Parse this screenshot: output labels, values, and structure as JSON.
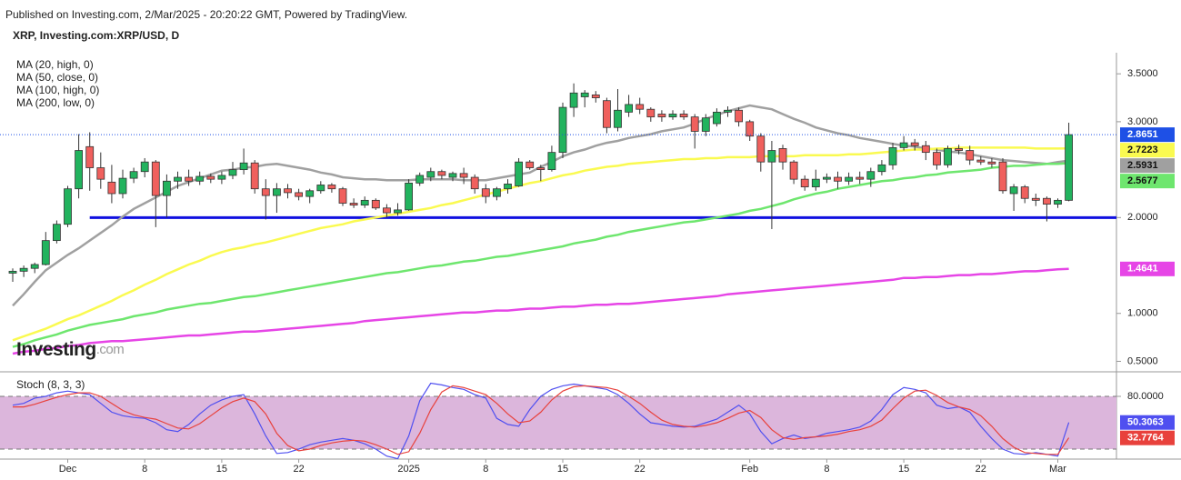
{
  "header": {
    "published": "Published on Investing.com, 2/Mar/2025 - 20:20:22 GMT, Powered by TradingView.",
    "logo": "Investing",
    "logo_suffix": ".com"
  },
  "chart_data": [
    {
      "type": "candlestick",
      "title": "XRP, Investing.com:XRP/USD, D",
      "categories": [
        null,
        null,
        null,
        null,
        null,
        "Dec",
        null,
        null,
        null,
        null,
        null,
        null,
        "8",
        null,
        null,
        null,
        null,
        null,
        null,
        "15",
        null,
        null,
        null,
        null,
        null,
        null,
        "22",
        null,
        null,
        null,
        null,
        null,
        null,
        null,
        null,
        null,
        "2025",
        null,
        null,
        null,
        null,
        null,
        null,
        "8",
        null,
        null,
        null,
        null,
        null,
        null,
        "15",
        null,
        null,
        null,
        null,
        null,
        null,
        "22",
        null,
        null,
        null,
        null,
        null,
        null,
        null,
        null,
        null,
        "Feb",
        null,
        null,
        null,
        null,
        null,
        null,
        "8",
        null,
        null,
        null,
        null,
        null,
        null,
        "15",
        null,
        null,
        null,
        null,
        null,
        null,
        "22",
        null,
        null,
        null,
        null,
        null,
        null,
        "Mar",
        null
      ],
      "open": [
        1.42,
        1.44,
        1.47,
        1.51,
        1.76,
        1.93,
        2.3,
        2.74,
        2.52,
        2.37,
        2.25,
        2.41,
        2.48,
        2.58,
        2.23,
        2.38,
        2.42,
        2.38,
        2.43,
        2.4,
        2.44,
        2.5,
        2.57,
        2.3,
        2.23,
        2.3,
        2.26,
        2.22,
        2.28,
        2.34,
        2.3,
        2.15,
        2.13,
        2.18,
        2.1,
        2.05,
        2.08,
        2.36,
        2.42,
        2.48,
        2.42,
        2.46,
        2.42,
        2.3,
        2.22,
        2.3,
        2.33,
        2.58,
        2.52,
        2.5,
        2.68,
        3.15,
        3.26,
        3.28,
        3.22,
        2.94,
        3.1,
        3.18,
        3.13,
        3.08,
        3.05,
        3.08,
        3.05,
        2.9,
        2.98,
        3.1,
        3.12,
        3.0,
        2.85,
        2.58,
        2.72,
        2.58,
        2.4,
        2.32,
        2.4,
        2.42,
        2.38,
        2.42,
        2.4,
        2.48,
        2.55,
        2.73,
        2.78,
        2.75,
        2.68,
        2.55,
        2.72,
        2.7,
        2.6,
        2.58,
        2.58,
        2.25,
        2.32,
        2.2,
        2.2,
        2.14,
        2.18
      ],
      "high": [
        1.47,
        1.5,
        1.53,
        1.85,
        1.97,
        2.33,
        2.87,
        2.89,
        2.68,
        2.55,
        2.5,
        2.52,
        2.62,
        2.6,
        2.45,
        2.48,
        2.5,
        2.48,
        2.46,
        2.48,
        2.58,
        2.72,
        2.6,
        2.4,
        2.36,
        2.35,
        2.3,
        2.3,
        2.38,
        2.36,
        2.32,
        2.2,
        2.22,
        2.2,
        2.14,
        2.15,
        2.4,
        2.47,
        2.52,
        2.5,
        2.48,
        2.52,
        2.45,
        2.35,
        2.32,
        2.4,
        2.62,
        2.6,
        2.55,
        2.75,
        3.2,
        3.4,
        3.33,
        3.32,
        3.25,
        3.34,
        3.28,
        3.25,
        3.15,
        3.12,
        3.12,
        3.12,
        3.08,
        3.08,
        3.14,
        3.16,
        3.15,
        3.02,
        2.88,
        2.8,
        2.76,
        2.6,
        2.44,
        2.5,
        2.46,
        2.48,
        2.47,
        2.48,
        2.52,
        2.6,
        2.78,
        2.85,
        2.82,
        2.8,
        2.72,
        2.75,
        2.76,
        2.75,
        2.64,
        2.62,
        2.62,
        2.35,
        2.34,
        2.25,
        2.22,
        2.2,
        2.99
      ],
      "low": [
        1.33,
        1.38,
        1.42,
        1.5,
        1.73,
        1.9,
        2.2,
        2.28,
        2.3,
        2.15,
        2.2,
        2.36,
        2.42,
        1.9,
        2.0,
        2.3,
        2.33,
        2.34,
        2.36,
        2.35,
        2.4,
        2.45,
        2.25,
        1.98,
        2.05,
        2.2,
        2.18,
        2.15,
        2.25,
        2.26,
        2.12,
        2.1,
        2.1,
        2.08,
        2.0,
        2.02,
        2.07,
        2.33,
        2.38,
        2.4,
        2.38,
        2.35,
        2.25,
        2.15,
        2.18,
        2.25,
        2.32,
        2.5,
        2.38,
        2.48,
        2.62,
        3.05,
        3.15,
        3.2,
        2.88,
        2.9,
        3.05,
        3.08,
        3.0,
        3.0,
        3.02,
        3.02,
        2.72,
        2.85,
        2.95,
        3.05,
        2.95,
        2.8,
        2.48,
        1.88,
        2.5,
        2.35,
        2.28,
        2.28,
        2.36,
        2.3,
        2.34,
        2.35,
        2.32,
        2.44,
        2.5,
        2.7,
        2.7,
        2.6,
        2.5,
        2.52,
        2.66,
        2.55,
        2.55,
        2.52,
        2.25,
        2.07,
        2.15,
        2.12,
        1.96,
        2.1,
        2.17
      ],
      "close": [
        1.44,
        1.47,
        1.51,
        1.76,
        1.93,
        2.3,
        2.7,
        2.52,
        2.4,
        2.25,
        2.41,
        2.48,
        2.58,
        2.23,
        2.38,
        2.42,
        2.38,
        2.43,
        2.4,
        2.44,
        2.5,
        2.57,
        2.3,
        2.23,
        2.3,
        2.26,
        2.22,
        2.28,
        2.34,
        2.3,
        2.15,
        2.13,
        2.18,
        2.1,
        2.05,
        2.08,
        2.36,
        2.44,
        2.48,
        2.44,
        2.46,
        2.42,
        2.3,
        2.22,
        2.3,
        2.35,
        2.58,
        2.52,
        2.5,
        2.68,
        3.15,
        3.3,
        3.3,
        3.25,
        2.94,
        3.12,
        3.18,
        3.13,
        3.05,
        3.05,
        3.08,
        3.05,
        2.9,
        3.04,
        3.1,
        3.12,
        3.0,
        2.85,
        2.58,
        2.7,
        2.58,
        2.4,
        2.32,
        2.4,
        2.42,
        2.38,
        2.42,
        2.4,
        2.48,
        2.55,
        2.73,
        2.78,
        2.75,
        2.68,
        2.55,
        2.72,
        2.7,
        2.6,
        2.58,
        2.56,
        2.28,
        2.32,
        2.2,
        2.18,
        2.14,
        2.18,
        2.8651
      ],
      "up_color": "#22b35e",
      "down_color": "#f0605d",
      "last_color": "#1e50e6",
      "series": [
        {
          "name": "MA (20, high, 0)",
          "color": "#a0a0a0",
          "values": [
            1.08,
            1.2,
            1.33,
            1.45,
            1.53,
            1.61,
            1.68,
            1.76,
            1.84,
            1.92,
            2.01,
            2.09,
            2.15,
            2.21,
            2.27,
            2.33,
            2.37,
            2.41,
            2.45,
            2.49,
            2.5,
            2.52,
            2.53,
            2.55,
            2.56,
            2.54,
            2.52,
            2.5,
            2.47,
            2.45,
            2.42,
            2.41,
            2.4,
            2.4,
            2.39,
            2.39,
            2.39,
            2.4,
            2.4,
            2.4,
            2.4,
            2.39,
            2.39,
            2.39,
            2.41,
            2.43,
            2.45,
            2.47,
            2.53,
            2.58,
            2.64,
            2.68,
            2.71,
            2.75,
            2.78,
            2.8,
            2.83,
            2.85,
            2.87,
            2.9,
            2.92,
            2.94,
            2.98,
            3.03,
            3.07,
            3.11,
            3.14,
            3.17,
            3.15,
            3.13,
            3.08,
            3.03,
            2.99,
            2.94,
            2.91,
            2.88,
            2.86,
            2.83,
            2.81,
            2.79,
            2.77,
            2.75,
            2.74,
            2.72,
            2.71,
            2.69,
            2.68,
            2.66,
            2.64,
            2.62,
            2.6,
            2.59,
            2.58,
            2.57,
            2.56,
            2.58,
            2.5931
          ]
        },
        {
          "name": "MA (50, close, 0)",
          "color": "#fafa50",
          "values": [
            0.72,
            0.76,
            0.8,
            0.84,
            0.89,
            0.94,
            0.98,
            1.03,
            1.08,
            1.13,
            1.19,
            1.24,
            1.3,
            1.35,
            1.41,
            1.46,
            1.51,
            1.55,
            1.6,
            1.64,
            1.67,
            1.69,
            1.72,
            1.74,
            1.77,
            1.8,
            1.83,
            1.86,
            1.89,
            1.91,
            1.93,
            1.96,
            1.98,
            2.0,
            2.02,
            2.04,
            2.06,
            2.08,
            2.1,
            2.13,
            2.15,
            2.18,
            2.21,
            2.24,
            2.27,
            2.3,
            2.33,
            2.36,
            2.38,
            2.41,
            2.44,
            2.46,
            2.49,
            2.51,
            2.53,
            2.54,
            2.56,
            2.57,
            2.58,
            2.59,
            2.6,
            2.61,
            2.61,
            2.62,
            2.62,
            2.63,
            2.63,
            2.63,
            2.64,
            2.64,
            2.64,
            2.64,
            2.65,
            2.65,
            2.65,
            2.65,
            2.66,
            2.66,
            2.67,
            2.68,
            2.69,
            2.7,
            2.71,
            2.71,
            2.72,
            2.72,
            2.73,
            2.73,
            2.73,
            2.73,
            2.73,
            2.73,
            2.73,
            2.72,
            2.72,
            2.72,
            2.7223
          ]
        },
        {
          "name": "MA (100, high, 0)",
          "color": "#6ee66e",
          "values": [
            0.65,
            0.68,
            0.72,
            0.75,
            0.78,
            0.82,
            0.85,
            0.88,
            0.9,
            0.92,
            0.94,
            0.97,
            0.99,
            1.01,
            1.04,
            1.06,
            1.08,
            1.1,
            1.11,
            1.13,
            1.15,
            1.17,
            1.18,
            1.2,
            1.22,
            1.24,
            1.26,
            1.28,
            1.3,
            1.32,
            1.34,
            1.36,
            1.38,
            1.4,
            1.42,
            1.43,
            1.45,
            1.47,
            1.49,
            1.5,
            1.52,
            1.54,
            1.55,
            1.57,
            1.59,
            1.6,
            1.62,
            1.64,
            1.66,
            1.68,
            1.7,
            1.73,
            1.75,
            1.77,
            1.8,
            1.82,
            1.85,
            1.87,
            1.89,
            1.91,
            1.93,
            1.95,
            1.96,
            1.98,
            2.0,
            2.02,
            2.04,
            2.07,
            2.09,
            2.12,
            2.15,
            2.19,
            2.22,
            2.25,
            2.27,
            2.3,
            2.32,
            2.34,
            2.36,
            2.38,
            2.39,
            2.41,
            2.42,
            2.44,
            2.45,
            2.47,
            2.48,
            2.49,
            2.5,
            2.52,
            2.53,
            2.54,
            2.54,
            2.55,
            2.56,
            2.56,
            2.5677
          ]
        },
        {
          "name": "MA (200, low, 0)",
          "color": "#e645e6",
          "values": [
            0.58,
            0.6,
            0.61,
            0.63,
            0.64,
            0.66,
            0.67,
            0.69,
            0.7,
            0.71,
            0.71,
            0.72,
            0.73,
            0.74,
            0.75,
            0.76,
            0.77,
            0.77,
            0.78,
            0.79,
            0.8,
            0.81,
            0.81,
            0.82,
            0.83,
            0.84,
            0.85,
            0.86,
            0.87,
            0.88,
            0.89,
            0.9,
            0.92,
            0.93,
            0.94,
            0.95,
            0.96,
            0.97,
            0.98,
            0.99,
            1.0,
            1.01,
            1.01,
            1.02,
            1.03,
            1.03,
            1.04,
            1.05,
            1.05,
            1.06,
            1.07,
            1.07,
            1.08,
            1.09,
            1.09,
            1.1,
            1.1,
            1.11,
            1.12,
            1.13,
            1.14,
            1.15,
            1.16,
            1.17,
            1.18,
            1.2,
            1.21,
            1.22,
            1.23,
            1.24,
            1.25,
            1.26,
            1.27,
            1.28,
            1.29,
            1.3,
            1.31,
            1.32,
            1.33,
            1.34,
            1.35,
            1.37,
            1.37,
            1.38,
            1.38,
            1.39,
            1.4,
            1.4,
            1.41,
            1.41,
            1.42,
            1.43,
            1.44,
            1.44,
            1.45,
            1.46,
            1.4641
          ]
        }
      ],
      "hlines": [
        {
          "value": 2.0,
          "color": "#1010e0"
        }
      ],
      "ylim": [
        0.4,
        3.72
      ],
      "yticks": [
        {
          "value": 0.5,
          "label": "0.5000"
        },
        {
          "value": 1.0,
          "label": "1.0000"
        },
        {
          "value": 2.0,
          "label": "2.0000"
        },
        {
          "value": 3.0,
          "label": "3.0000"
        },
        {
          "value": 3.5,
          "label": "3.5000"
        }
      ]
    },
    {
      "type": "line",
      "title": "Stoch (8, 3, 3)",
      "series": [
        {
          "color": "#4f4ff0",
          "values": [
            70,
            72,
            78,
            80,
            84,
            86,
            84,
            82,
            72,
            62,
            58,
            56,
            55,
            50,
            42,
            40,
            48,
            60,
            70,
            76,
            80,
            82,
            60,
            35,
            15,
            16,
            20,
            25,
            28,
            30,
            32,
            30,
            26,
            20,
            12,
            9,
            35,
            75,
            95,
            93,
            90,
            88,
            82,
            78,
            55,
            48,
            46,
            65,
            80,
            88,
            92,
            94,
            92,
            90,
            88,
            82,
            72,
            60,
            50,
            48,
            46,
            45,
            46,
            50,
            54,
            62,
            70,
            60,
            40,
            26,
            32,
            36,
            32,
            34,
            38,
            40,
            42,
            45,
            52,
            65,
            82,
            90,
            88,
            84,
            70,
            66,
            68,
            62,
            46,
            32,
            20,
            15,
            14,
            16,
            14,
            12,
            50.3063
          ]
        },
        {
          "color": "#e8413c",
          "values": [
            68,
            68,
            71,
            75,
            79,
            82,
            84,
            84,
            80,
            72,
            64,
            59,
            56,
            54,
            49,
            44,
            43,
            49,
            58,
            67,
            74,
            78,
            74,
            60,
            38,
            24,
            18,
            20,
            24,
            27,
            29,
            30,
            29,
            25,
            20,
            14,
            17,
            38,
            65,
            85,
            92,
            90,
            86,
            82,
            72,
            60,
            50,
            52,
            62,
            76,
            86,
            91,
            92,
            91,
            90,
            87,
            80,
            72,
            62,
            53,
            48,
            46,
            45,
            47,
            50,
            55,
            61,
            64,
            56,
            42,
            33,
            31,
            33,
            34,
            35,
            37,
            40,
            42,
            46,
            53,
            66,
            78,
            86,
            87,
            81,
            73,
            68,
            65,
            58,
            46,
            32,
            22,
            16,
            15,
            14,
            14,
            32.7764
          ]
        }
      ],
      "band": [
        20,
        80
      ],
      "band_color": "#dcb6dc",
      "ylim": [
        8.6,
        106.9
      ],
      "yticks": [
        {
          "value": 80,
          "label": "80.0000"
        }
      ]
    }
  ]
}
